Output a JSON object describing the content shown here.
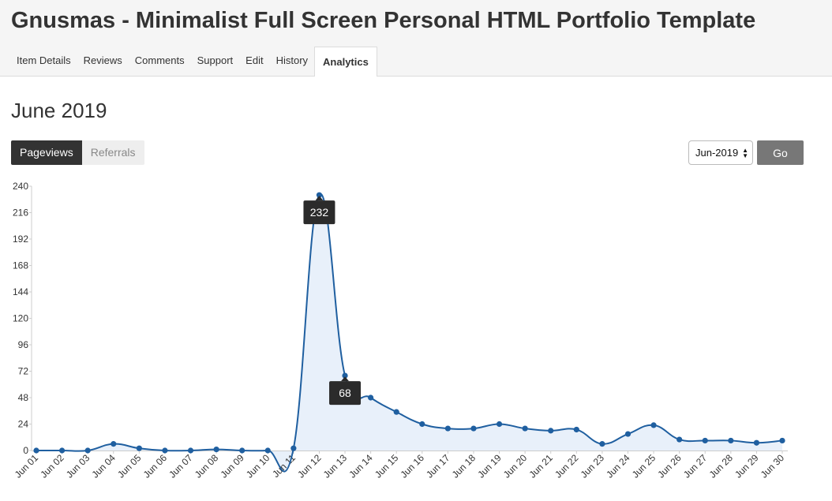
{
  "header": {
    "title": "Gnusmas - Minimalist Full Screen Personal HTML Portfolio Template",
    "tabs": [
      {
        "label": "Item Details"
      },
      {
        "label": "Reviews"
      },
      {
        "label": "Comments"
      },
      {
        "label": "Support"
      },
      {
        "label": "Edit"
      },
      {
        "label": "History"
      },
      {
        "label": "Analytics",
        "active": true
      }
    ]
  },
  "main": {
    "month_title": "June 2019",
    "toggle": {
      "pageviews": "Pageviews",
      "referrals": "Referrals",
      "selected": "Pageviews"
    },
    "month_select": {
      "value": "Jun-2019"
    },
    "go_label": "Go"
  },
  "colors": {
    "line": "#1f5fa0",
    "fill": "#e8f0fa",
    "tooltip": "#2b2b2b"
  },
  "chart_data": {
    "type": "area",
    "title": "",
    "xlabel": "",
    "ylabel": "",
    "ylim": [
      0,
      240
    ],
    "yticks": [
      0,
      24,
      48,
      72,
      96,
      120,
      144,
      168,
      192,
      216,
      240
    ],
    "categories": [
      "Jun 01",
      "Jun 02",
      "Jun 03",
      "Jun 04",
      "Jun 05",
      "Jun 06",
      "Jun 07",
      "Jun 08",
      "Jun 09",
      "Jun 10",
      "Jun 11",
      "Jun 12",
      "Jun 13",
      "Jun 14",
      "Jun 15",
      "Jun 16",
      "Jun 17",
      "Jun 18",
      "Jun 19",
      "Jun 20",
      "Jun 21",
      "Jun 22",
      "Jun 23",
      "Jun 24",
      "Jun 25",
      "Jun 26",
      "Jun 27",
      "Jun 28",
      "Jun 29",
      "Jun 30"
    ],
    "series": [
      {
        "values": [
          0,
          0,
          0,
          6,
          2,
          0,
          0,
          1,
          0,
          0,
          2,
          232,
          68,
          48,
          35,
          24,
          20,
          20,
          24,
          20,
          18,
          19,
          6,
          15,
          23,
          10,
          9,
          9,
          7,
          9
        ]
      }
    ],
    "tooltips": [
      {
        "category": "Jun 12",
        "label": "232"
      },
      {
        "category": "Jun 13",
        "label": "68"
      }
    ],
    "grid": false,
    "legend": "none"
  }
}
